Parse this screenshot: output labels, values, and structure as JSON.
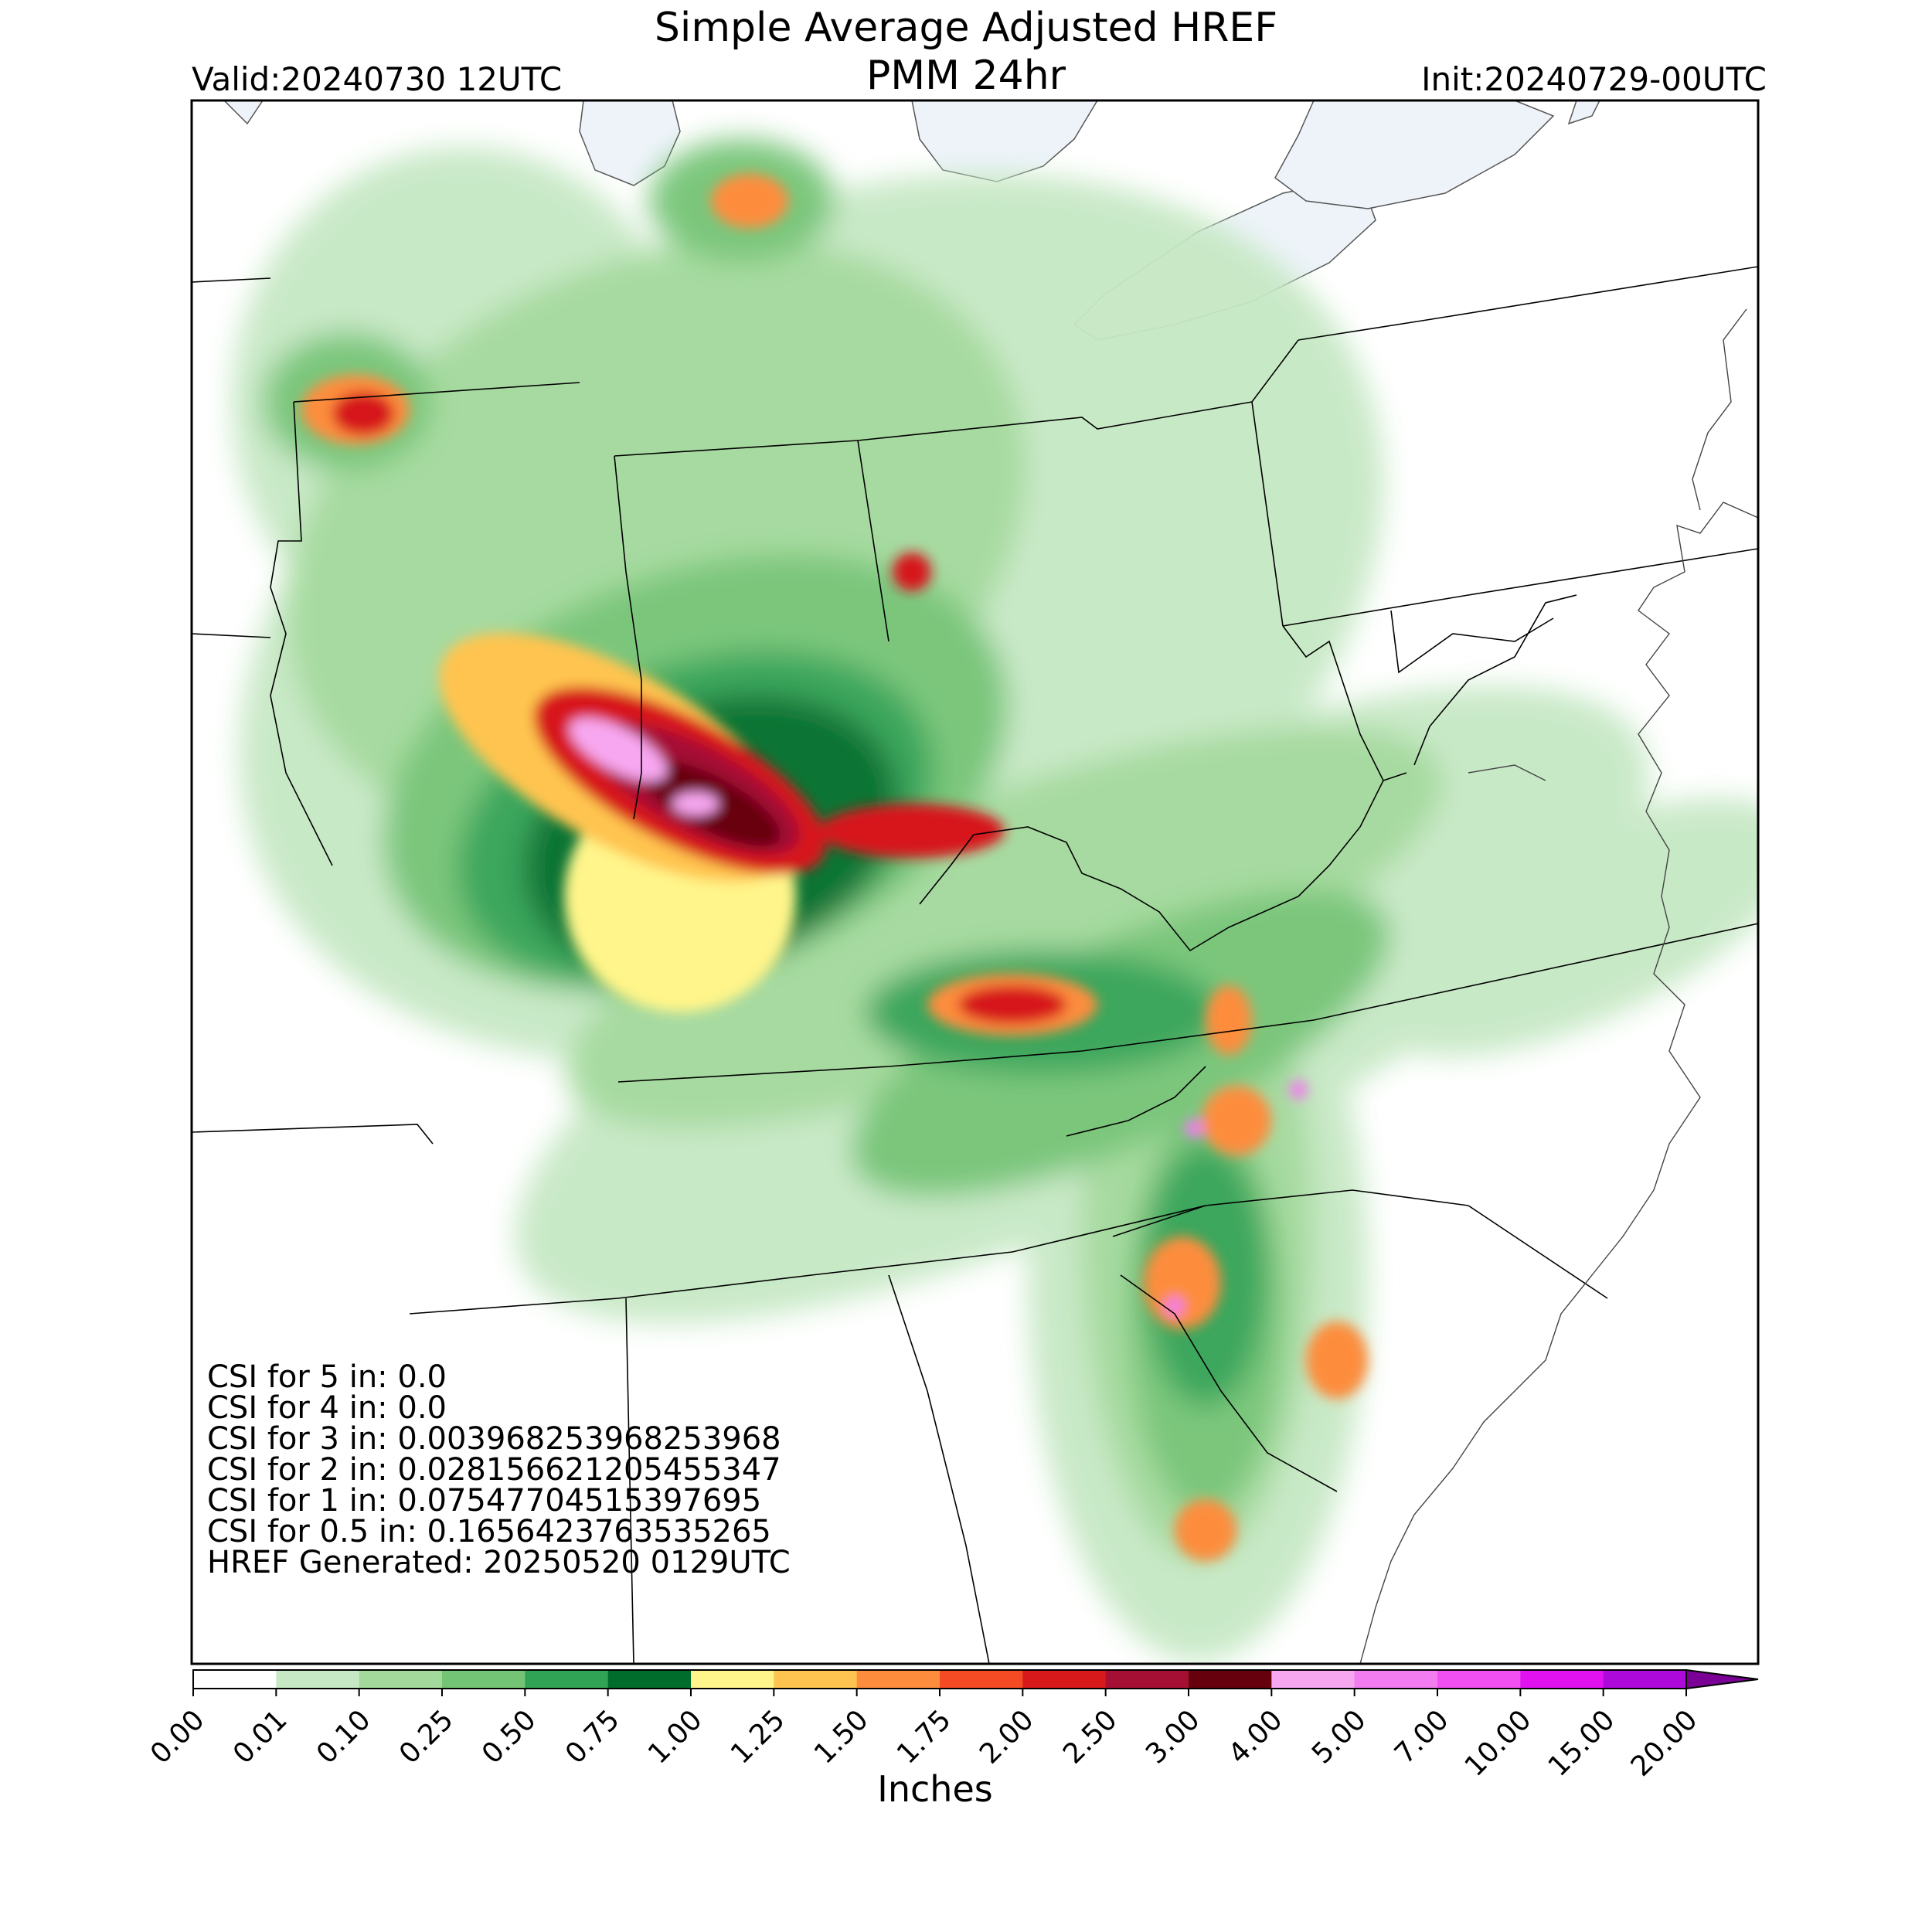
{
  "title_line1": "Simple Average Adjusted HREF",
  "title_line2": "PMM 24hr",
  "valid": "Valid:20240730 12UTC",
  "init": "Init:20240729-00UTC",
  "stats": [
    {
      "label": "CSI for 5 in: 0.0"
    },
    {
      "label": "CSI for 4 in: 0.0"
    },
    {
      "label": "CSI for 3 in: 0.003968253968253968"
    },
    {
      "label": "CSI for 2 in: 0.028156621205455347"
    },
    {
      "label": "CSI for 1 in: 0.07547704515397695"
    },
    {
      "label": "CSI for 0.5 in: 0.1656423763535265"
    },
    {
      "label": "HREF Generated: 20250520 0129UTC"
    }
  ],
  "colorbar": {
    "label": "Inches",
    "ticks": [
      "0.00",
      "0.01",
      "0.10",
      "0.25",
      "0.50",
      "0.75",
      "1.00",
      "1.25",
      "1.50",
      "1.75",
      "2.00",
      "2.50",
      "3.00",
      "4.00",
      "5.00",
      "7.00",
      "10.00",
      "15.00",
      "20.00"
    ],
    "colors": [
      "#ffffff",
      "#c6e8c4",
      "#a3d99b",
      "#74c476",
      "#31a354",
      "#006d2c",
      "#fff58a",
      "#ffc44f",
      "#fd8d3c",
      "#f54b24",
      "#d7191c",
      "#a50f34",
      "#67000d",
      "#f7a7f0",
      "#f37cf0",
      "#f14ff1",
      "#e012f0",
      "#ad09db"
    ],
    "extend_color": "#7b0095"
  },
  "colors": {
    "lake": "#eef3fa",
    "border": "#000000"
  }
}
